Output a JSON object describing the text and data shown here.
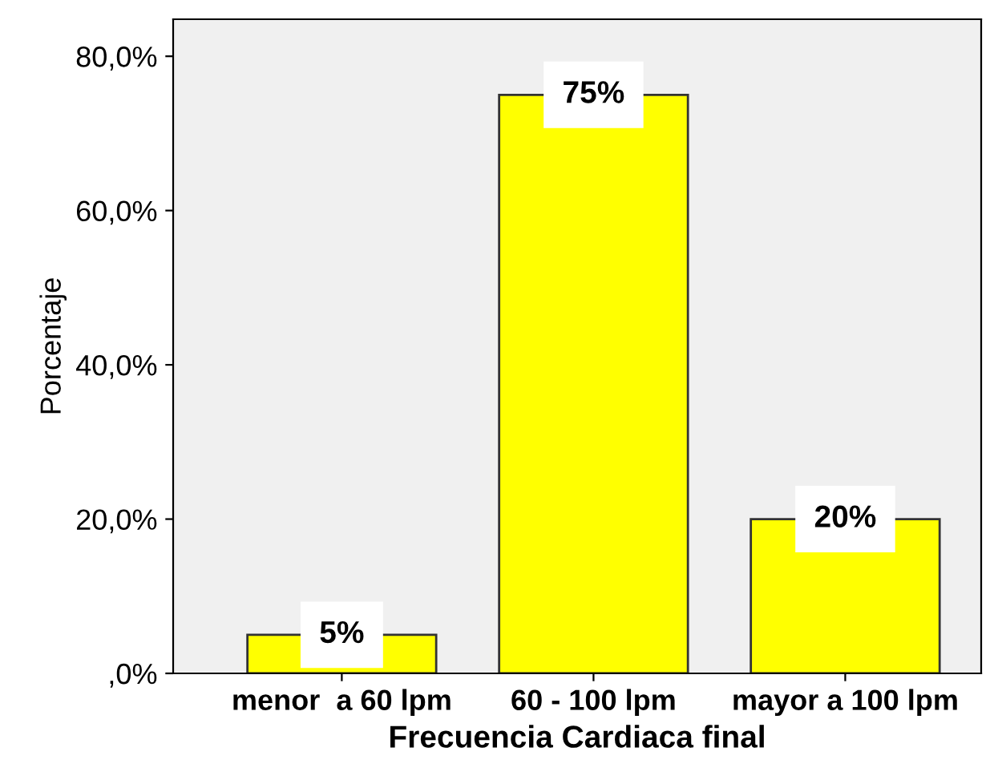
{
  "chart_data": {
    "type": "bar",
    "xlabel": "Frecuencia Cardiaca final",
    "ylabel": "Porcentaje",
    "categories": [
      "menor  a 60 lpm",
      "60 - 100 lpm",
      "mayor a 100 lpm"
    ],
    "values": [
      5,
      75,
      20
    ],
    "value_labels": [
      "5%",
      "75%",
      "20%"
    ],
    "color": "#ffff00",
    "ylim": [
      0,
      84.8
    ],
    "yticks": [
      {
        "value": 0,
        "label": ",0%"
      },
      {
        "value": 20,
        "label": "20,0%"
      },
      {
        "value": 40,
        "label": "40,0%"
      },
      {
        "value": 60,
        "label": "60,0%"
      },
      {
        "value": 80,
        "label": "80,0%"
      }
    ],
    "grid": false
  }
}
